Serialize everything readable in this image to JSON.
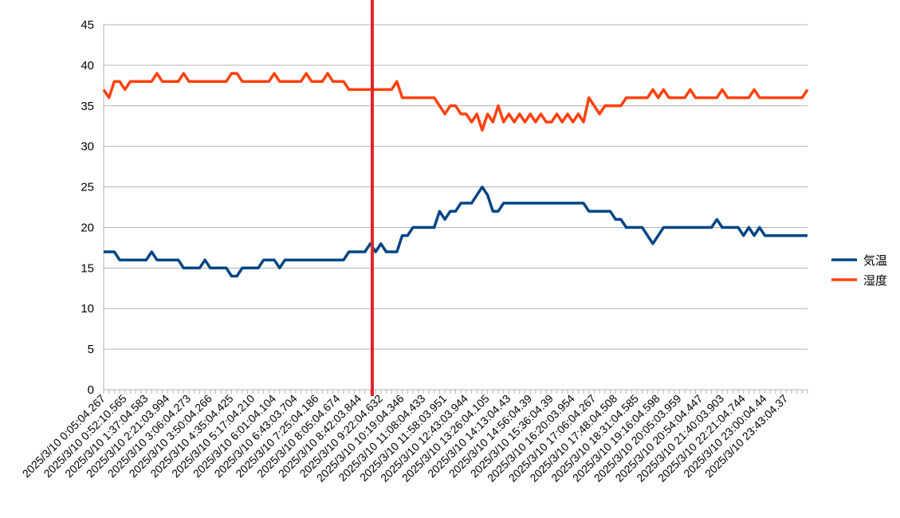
{
  "chart_data": {
    "type": "line",
    "categories": [
      "2025/3/10 0:05:04.267",
      null,
      null,
      null,
      "2025/3/10 0:52:10.565",
      null,
      null,
      null,
      "2025/3/10 1:37:04.583",
      null,
      null,
      null,
      "2025/3/10 2:21:03.994",
      null,
      null,
      null,
      "2025/3/10 3:06:04.273",
      null,
      null,
      null,
      "2025/3/10 3:50:04.266",
      null,
      null,
      null,
      "2025/3/10 4:35:04.425",
      null,
      null,
      null,
      "2025/3/10 5:17:04.210",
      null,
      null,
      null,
      "2025/3/10 6:01:04.104",
      null,
      null,
      null,
      "2025/3/10 6:43:03.704",
      null,
      null,
      null,
      "2025/3/10 7:25:04.186",
      null,
      null,
      null,
      "2025/3/10 8:05:04.674",
      null,
      null,
      null,
      "2025/3/10 8:42:03.844",
      null,
      null,
      null,
      "2025/3/10 9:22:04.632",
      null,
      null,
      null,
      "2025/3/10 10:19:04.346",
      null,
      null,
      null,
      "2025/3/10 11:08:04.433",
      null,
      null,
      null,
      "2025/3/10 11:58:03.951",
      null,
      null,
      null,
      "2025/3/10 12:43:03.944",
      null,
      null,
      null,
      "2025/3/10 13:26:04.105",
      null,
      null,
      null,
      "2025/3/10 14:13:04.43",
      null,
      null,
      null,
      "2025/3/10 14:56:04.39",
      null,
      null,
      null,
      "2025/3/10 15:36:04.39",
      null,
      null,
      null,
      "2025/3/10 16:20:03.954",
      null,
      null,
      null,
      "2025/3/10 17:06:04.267",
      null,
      null,
      null,
      "2025/3/10 17:48:04.508",
      null,
      null,
      null,
      "2025/3/10 18:31:04.585",
      null,
      null,
      null,
      "2025/3/10 19:16:04.598",
      null,
      null,
      null,
      "2025/3/10 20:05:03.959",
      null,
      null,
      null,
      "2025/3/10 20:54:04.447",
      null,
      null,
      null,
      "2025/3/10 21:40:03.903",
      null,
      null,
      null,
      "2025/3/10 22:21:04.744",
      null,
      null,
      null,
      "2025/3/10 23:00:04.44",
      null,
      null,
      null,
      "2025/3/10 23:43:04.37",
      null,
      null,
      null,
      null
    ],
    "series": [
      {
        "name": "気温",
        "color": "#004586",
        "values": [
          17,
          17,
          17,
          16,
          16,
          16,
          16,
          16,
          16,
          17,
          16,
          16,
          16,
          16,
          16,
          15,
          15,
          15,
          15,
          16,
          15,
          15,
          15,
          15,
          14,
          14,
          15,
          15,
          15,
          15,
          16,
          16,
          16,
          15,
          16,
          16,
          16,
          16,
          16,
          16,
          16,
          16,
          16,
          16,
          16,
          16,
          17,
          17,
          17,
          17,
          18,
          17,
          18,
          17,
          17,
          17,
          19,
          19,
          20,
          20,
          20,
          20,
          20,
          22,
          21,
          22,
          22,
          23,
          23,
          23,
          24,
          25,
          24,
          22,
          22,
          23,
          23,
          23,
          23,
          23,
          23,
          23,
          23,
          23,
          23,
          23,
          23,
          23,
          23,
          23,
          23,
          22,
          22,
          22,
          22,
          22,
          21,
          21,
          20,
          20,
          20,
          20,
          19,
          18,
          19,
          20,
          20,
          20,
          20,
          20,
          20,
          20,
          20,
          20,
          20,
          21,
          20,
          20,
          20,
          20,
          19,
          20,
          19,
          20,
          19,
          19,
          19,
          19,
          19,
          19,
          19,
          19,
          19
        ]
      },
      {
        "name": "湿度",
        "color": "#ff420e",
        "values": [
          37,
          36,
          38,
          38,
          37,
          38,
          38,
          38,
          38,
          38,
          39,
          38,
          38,
          38,
          38,
          39,
          38,
          38,
          38,
          38,
          38,
          38,
          38,
          38,
          39,
          39,
          38,
          38,
          38,
          38,
          38,
          38,
          39,
          38,
          38,
          38,
          38,
          38,
          39,
          38,
          38,
          38,
          39,
          38,
          38,
          38,
          37,
          37,
          37,
          37,
          37,
          37,
          37,
          37,
          37,
          38,
          36,
          36,
          36,
          36,
          36,
          36,
          36,
          35,
          34,
          35,
          35,
          34,
          34,
          33,
          34,
          32,
          34,
          33,
          35,
          33,
          34,
          33,
          34,
          33,
          34,
          33,
          34,
          33,
          33,
          34,
          33,
          34,
          33,
          34,
          33,
          36,
          35,
          34,
          35,
          35,
          35,
          35,
          36,
          36,
          36,
          36,
          36,
          37,
          36,
          37,
          36,
          36,
          36,
          36,
          37,
          36,
          36,
          36,
          36,
          36,
          37,
          36,
          36,
          36,
          36,
          36,
          37,
          36,
          36,
          36,
          36,
          36,
          36,
          36,
          36,
          36,
          37
        ]
      }
    ],
    "ylim": [
      0,
      45
    ],
    "yticks": [
      0,
      5,
      10,
      15,
      20,
      25,
      30,
      35,
      40,
      45
    ],
    "grid": true,
    "legend": "right"
  }
}
